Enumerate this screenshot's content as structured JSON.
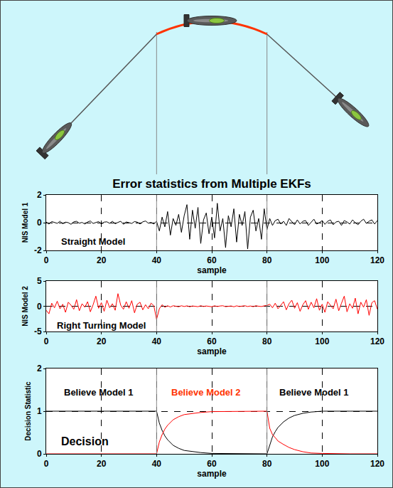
{
  "title": "Error statistics from Multiple EKFs",
  "maneuver_samples": [
    40,
    80
  ],
  "chart_data": [
    {
      "type": "line",
      "xlabel": "sample",
      "ylabel": "NIS Model 1",
      "xlim": [
        0,
        120
      ],
      "xticks": [
        0,
        20,
        40,
        60,
        80,
        100,
        120
      ],
      "ylim": [
        -2,
        2
      ],
      "yticks": [
        -2,
        0,
        2
      ],
      "grid": true,
      "annotations": [
        {
          "text": "Straight Model",
          "x": 17,
          "y": -1.35,
          "color": "#000000"
        }
      ],
      "x": [
        0,
        1,
        2,
        3,
        4,
        5,
        6,
        7,
        8,
        9,
        10,
        11,
        12,
        13,
        14,
        15,
        16,
        17,
        18,
        19,
        20,
        21,
        22,
        23,
        24,
        25,
        26,
        27,
        28,
        29,
        30,
        31,
        32,
        33,
        34,
        35,
        36,
        37,
        38,
        39,
        40,
        41,
        42,
        43,
        44,
        45,
        46,
        47,
        48,
        49,
        50,
        51,
        52,
        53,
        54,
        55,
        56,
        57,
        58,
        59,
        60,
        61,
        62,
        63,
        64,
        65,
        66,
        67,
        68,
        69,
        70,
        71,
        72,
        73,
        74,
        75,
        76,
        77,
        78,
        79,
        80,
        81,
        82,
        83,
        84,
        85,
        86,
        87,
        88,
        89,
        90,
        91,
        92,
        93,
        94,
        95,
        96,
        97,
        98,
        99,
        100,
        101,
        102,
        103,
        104,
        105,
        106,
        107,
        108,
        109,
        110,
        111,
        112,
        113,
        114,
        115,
        116,
        117,
        118,
        119,
        120
      ],
      "series": [
        {
          "color": "#000000",
          "values": [
            0.05,
            -0.1,
            0.08,
            0.02,
            -0.05,
            0.1,
            -0.08,
            0.04,
            0.0,
            -0.12,
            0.06,
            0.1,
            -0.04,
            0.02,
            -0.1,
            0.05,
            0.12,
            -0.06,
            0.0,
            0.08,
            -0.1,
            0.04,
            0.06,
            -0.05,
            0.1,
            -0.08,
            0.02,
            0.1,
            -0.12,
            0.05,
            0.0,
            -0.06,
            0.08,
            0.04,
            -0.1,
            0.06,
            0.12,
            -0.04,
            0.02,
            -0.1,
            0.1,
            -0.6,
            0.4,
            -0.3,
            0.8,
            -0.9,
            0.3,
            -0.2,
            0.6,
            -0.7,
            0.5,
            1.3,
            -1.2,
            0.9,
            -0.4,
            1.1,
            -1.5,
            0.2,
            0.7,
            -0.8,
            0.4,
            -1.1,
            1.4,
            -0.6,
            0.3,
            -1.8,
            0.5,
            -0.3,
            1.0,
            -1.4,
            0.6,
            -0.2,
            0.8,
            -1.9,
            0.4,
            0.9,
            -0.6,
            0.3,
            -1.2,
            1.0,
            -0.5,
            0.3,
            -0.2,
            0.15,
            0.25,
            -0.1,
            0.1,
            -0.2,
            0.3,
            0.05,
            -0.15,
            0.2,
            -0.1,
            0.1,
            0.15,
            -0.2,
            0.05,
            0.25,
            -0.1,
            0.0,
            0.15,
            -0.12,
            0.1,
            0.2,
            -0.15,
            0.05,
            0.1,
            -0.2,
            0.15,
            0.05,
            -0.1,
            0.2,
            0.0,
            -0.15,
            0.1,
            0.25,
            -0.05,
            0.1,
            0.2,
            -0.1,
            0.15
          ]
        }
      ]
    },
    {
      "type": "line",
      "xlabel": "sample",
      "ylabel": "NIS Model 2",
      "xlim": [
        0,
        120
      ],
      "xticks": [
        0,
        20,
        40,
        60,
        80,
        100,
        120
      ],
      "ylim": [
        -5,
        5
      ],
      "yticks": [
        -5,
        0,
        5
      ],
      "grid": true,
      "annotations": [
        {
          "text": "Right Turning Model",
          "x": 20,
          "y": -3.8,
          "color": "#000000"
        }
      ],
      "x": [
        0,
        1,
        2,
        3,
        4,
        5,
        6,
        7,
        8,
        9,
        10,
        11,
        12,
        13,
        14,
        15,
        16,
        17,
        18,
        19,
        20,
        21,
        22,
        23,
        24,
        25,
        26,
        27,
        28,
        29,
        30,
        31,
        32,
        33,
        34,
        35,
        36,
        37,
        38,
        39,
        40,
        41,
        42,
        43,
        44,
        45,
        46,
        47,
        48,
        49,
        50,
        51,
        52,
        53,
        54,
        55,
        56,
        57,
        58,
        59,
        60,
        61,
        62,
        63,
        64,
        65,
        66,
        67,
        68,
        69,
        70,
        71,
        72,
        73,
        74,
        75,
        76,
        77,
        78,
        79,
        80,
        81,
        82,
        83,
        84,
        85,
        86,
        87,
        88,
        89,
        90,
        91,
        92,
        93,
        94,
        95,
        96,
        97,
        98,
        99,
        100,
        101,
        102,
        103,
        104,
        105,
        106,
        107,
        108,
        109,
        110,
        111,
        112,
        113,
        114,
        115,
        116,
        117,
        118,
        119,
        120
      ],
      "series": [
        {
          "color": "#ff0000",
          "values": [
            -0.8,
            -1.5,
            0.6,
            -0.3,
            1.0,
            -0.5,
            0.4,
            -1.2,
            0.8,
            0.2,
            -0.6,
            1.3,
            -0.9,
            0.5,
            -0.2,
            0.9,
            -1.1,
            0.3,
            2.0,
            -0.4,
            0.7,
            -1.0,
            1.2,
            -0.3,
            0.5,
            -0.8,
            2.5,
            0.2,
            -0.6,
            0.9,
            -0.4,
            1.1,
            -1.3,
            0.4,
            0.8,
            -0.7,
            0.3,
            -0.5,
            0.6,
            0.1,
            -2.6,
            -0.5,
            0.3,
            -0.2,
            0.1,
            -0.15,
            0.1,
            0.05,
            -0.1,
            0.1,
            -0.05,
            0.08,
            -0.1,
            0.05,
            0.0,
            -0.08,
            0.1,
            -0.05,
            0.05,
            0.0,
            -0.1,
            0.08,
            -0.05,
            0.05,
            0.1,
            -0.08,
            0.0,
            0.05,
            -0.1,
            0.08,
            -0.05,
            0.0,
            0.1,
            -0.05,
            0.05,
            -0.08,
            0.1,
            0.0,
            -0.05,
            0.08,
            0.15,
            0.4,
            -0.3,
            0.6,
            -0.5,
            0.2,
            0.9,
            -0.7,
            0.5,
            1.2,
            -0.4,
            0.7,
            -1.0,
            0.3,
            1.1,
            -0.6,
            0.8,
            -0.3,
            1.5,
            -0.8,
            0.4,
            -1.2,
            0.9,
            0.2,
            -0.5,
            1.4,
            -0.9,
            0.6,
            2.0,
            -1.1,
            0.5,
            -0.4,
            1.6,
            -1.5,
            0.8,
            -0.2,
            1.3,
            -1.8,
            0.7,
            1.1,
            -0.6
          ]
        }
      ]
    },
    {
      "type": "line",
      "xlabel": "sample",
      "ylabel": "Decision Statistic",
      "xlim": [
        0,
        120
      ],
      "xticks": [
        0,
        20,
        40,
        60,
        80,
        100,
        120
      ],
      "ylim": [
        0,
        2
      ],
      "yticks": [
        0,
        1,
        2
      ],
      "grid": true,
      "annotations": [
        {
          "text": "Decision",
          "x": 14,
          "y": 0.3,
          "color": "#000000"
        },
        {
          "text": "Believe Model 1",
          "x": 19,
          "y": 1.45,
          "color": "#000000"
        },
        {
          "text": "Believe Model 2",
          "x": 58,
          "y": 1.45,
          "color": "#ff3300"
        },
        {
          "text": "Believe Model 1",
          "x": 97,
          "y": 1.45,
          "color": "#000000"
        }
      ],
      "x": [
        0,
        40,
        41,
        42,
        43,
        44,
        46,
        48,
        50,
        53,
        56,
        60,
        70,
        80,
        81,
        82,
        83,
        84,
        86,
        88,
        90,
        93,
        96,
        100,
        110,
        120
      ],
      "series": [
        {
          "color": "#000000",
          "values": [
            1,
            1,
            0.72,
            0.55,
            0.42,
            0.33,
            0.2,
            0.13,
            0.08,
            0.05,
            0.03,
            0.01,
            0,
            0,
            0.2,
            0.4,
            0.52,
            0.62,
            0.75,
            0.84,
            0.9,
            0.95,
            0.98,
            1,
            1,
            1
          ]
        },
        {
          "color": "#ff0000",
          "values": [
            0,
            0,
            0.28,
            0.45,
            0.58,
            0.67,
            0.8,
            0.87,
            0.92,
            0.95,
            0.97,
            0.99,
            1,
            1,
            0.6,
            0.45,
            0.38,
            0.3,
            0.22,
            0.15,
            0.1,
            0.05,
            0.02,
            0.01,
            0,
            0
          ]
        }
      ]
    }
  ]
}
